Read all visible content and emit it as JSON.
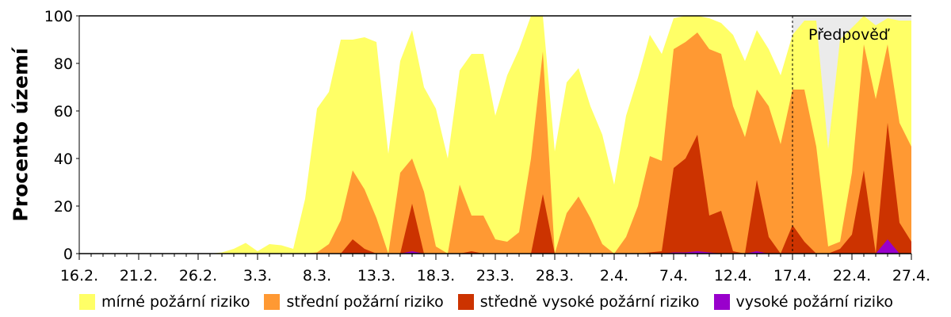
{
  "chart_data": {
    "type": "area",
    "stacked": false,
    "title": "",
    "ylabel": "Procento území",
    "xlabel": "",
    "ylim": [
      0,
      100
    ],
    "yticks": [
      0,
      20,
      40,
      60,
      80,
      100
    ],
    "xtick_labels": [
      "16.2.",
      "21.2.",
      "26.2.",
      "3.3.",
      "8.3.",
      "13.3.",
      "18.3.",
      "23.3.",
      "28.3.",
      "2.4.",
      "7.4.",
      "12.4.",
      "17.4.",
      "22.4.",
      "27.4."
    ],
    "xtick_every_days": 5,
    "start_date": "16.2.",
    "n_days": 71,
    "forecast_label": "Předpověď",
    "forecast_start_index": 60,
    "grid": false,
    "legend_position": "bottom",
    "series": [
      {
        "name": "mírné požární riziko",
        "color": "#FFFF66",
        "values": [
          0,
          0,
          0,
          0,
          0,
          0,
          0,
          0,
          0,
          0,
          0,
          0,
          0.5,
          2,
          4.5,
          1,
          4,
          3.5,
          2,
          23,
          61,
          68,
          90,
          90,
          91,
          89,
          42,
          81,
          94,
          70,
          61,
          40,
          77,
          84,
          84,
          58,
          75,
          86,
          100,
          100,
          43,
          72,
          78,
          62,
          50,
          29,
          58,
          74,
          92,
          84,
          99,
          100,
          100,
          99,
          97,
          92,
          81,
          94,
          86,
          75,
          92,
          98,
          98,
          44,
          90,
          95,
          100,
          96,
          99,
          98,
          98
        ]
      },
      {
        "name": "střední požární riziko",
        "color": "#FF9933",
        "values": [
          0,
          0,
          0,
          0,
          0,
          0,
          0,
          0,
          0,
          0,
          0,
          0,
          0,
          0,
          0,
          0,
          0,
          0,
          0,
          0,
          0.5,
          4,
          14,
          35,
          27,
          15,
          0,
          34,
          40,
          26,
          3,
          0,
          29,
          16,
          16,
          6,
          5,
          9,
          40,
          85,
          0,
          17,
          24,
          15,
          4,
          0,
          7,
          20,
          41,
          39,
          86,
          89,
          93,
          86,
          84,
          62,
          49,
          69,
          62,
          46,
          69,
          69,
          45,
          3,
          5,
          34,
          88,
          65,
          88,
          55,
          45
        ]
      },
      {
        "name": "středně vysoké požární riziko",
        "color": "#CC3300",
        "values": [
          0,
          0,
          0,
          0,
          0,
          0,
          0,
          0,
          0,
          0,
          0,
          0,
          0,
          0,
          0,
          0,
          0,
          0,
          0,
          0,
          0,
          0,
          0,
          6,
          2,
          0,
          0,
          0,
          21,
          0,
          0,
          0,
          0,
          1,
          0,
          0,
          0,
          0,
          0,
          25,
          0,
          0,
          0,
          0,
          0,
          0,
          0,
          0,
          0.5,
          1,
          36,
          40,
          50,
          16,
          18,
          1,
          0,
          31,
          7,
          0,
          12,
          5,
          0,
          0,
          2,
          8,
          35,
          0,
          55,
          13,
          5
        ]
      },
      {
        "name": "vysoké požární riziko",
        "color": "#9900CC",
        "values": [
          0,
          0,
          0,
          0,
          0,
          0,
          0,
          0,
          0,
          0,
          0,
          0,
          0,
          0,
          0,
          0,
          0,
          0,
          0,
          0,
          0,
          0,
          0,
          0,
          0,
          0,
          0,
          0,
          1,
          0,
          0,
          0,
          0,
          0,
          0,
          0,
          0,
          0,
          0,
          0,
          0,
          0,
          0,
          0,
          0,
          0,
          0,
          0,
          0,
          0,
          0.5,
          0.5,
          1,
          0.5,
          0,
          0,
          0,
          1,
          0,
          0,
          0,
          0,
          0,
          0,
          0,
          0,
          0,
          0,
          6,
          0,
          0
        ]
      }
    ]
  },
  "legend": {
    "items": [
      {
        "label": "mírné požární riziko",
        "color": "#FFFF66"
      },
      {
        "label": "střední požární riziko",
        "color": "#FF9933"
      },
      {
        "label": "středně vysoké požární riziko",
        "color": "#CC3300"
      },
      {
        "label": "vysoké požární riziko",
        "color": "#9900CC"
      }
    ]
  },
  "colors": {
    "forecast_bg": "#EBEBEB",
    "axis": "#000000"
  }
}
